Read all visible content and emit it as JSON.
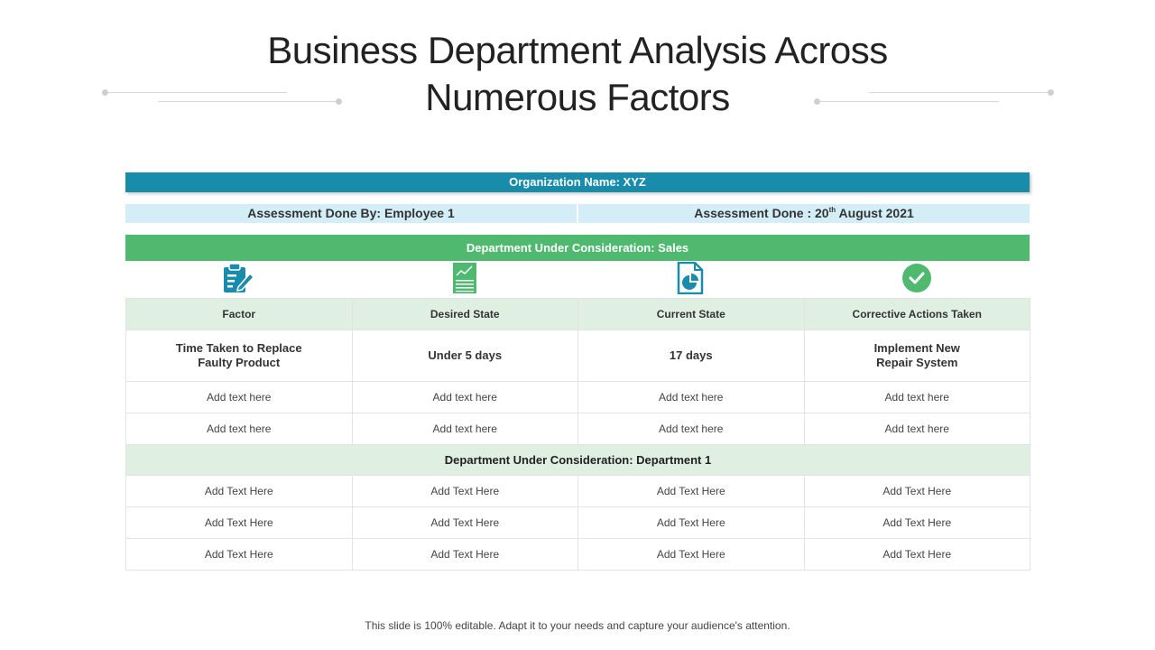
{
  "title": {
    "line1": "Business Department Analysis Across",
    "line2": "Numerous Factors"
  },
  "org_bar": "Organization Name: XYZ",
  "assessment": {
    "by": "Assessment Done By:  Employee 1",
    "done_prefix": "Assessment Done : 20",
    "done_sup": "th",
    "done_suffix": " August 2021"
  },
  "dept_sales": "Department Under Consideration:  Sales",
  "icons": [
    "clipboard-edit-icon",
    "document-chart-icon",
    "file-pie-icon",
    "check-circle-icon"
  ],
  "colors": {
    "teal": "#1a8cab",
    "light_blue": "#d4eef8",
    "green": "#4fb96f",
    "light_green": "#dff0e3"
  },
  "table": {
    "headers": [
      "Factor",
      "Desired State",
      "Current State",
      "Corrective Actions Taken"
    ],
    "main_row": [
      [
        "Time Taken to Replace",
        "Faulty Product"
      ],
      [
        "Under 5 days"
      ],
      [
        "17 days"
      ],
      [
        "Implement New",
        "Repair System"
      ]
    ],
    "rows": [
      [
        "Add text here",
        "Add text here",
        "Add text here",
        "Add text here"
      ],
      [
        "Add text here",
        "Add text here",
        "Add text here",
        "Add text here"
      ]
    ],
    "dept2_label": "Department Under Consideration: Department 1",
    "rows2": [
      [
        "Add Text Here",
        "Add Text Here",
        "Add Text Here",
        "Add Text Here"
      ],
      [
        "Add Text Here",
        "Add Text Here",
        "Add Text Here",
        "Add Text Here"
      ],
      [
        "Add Text Here",
        "Add Text Here",
        "Add Text Here",
        "Add Text Here"
      ]
    ]
  },
  "footer": "This slide is 100% editable. Adapt it to your needs and capture your audience's attention."
}
